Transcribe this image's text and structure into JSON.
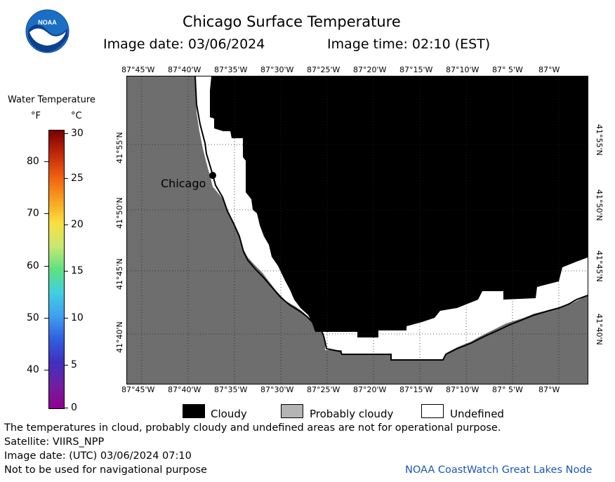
{
  "header": {
    "title": "Chicago Surface Temperature",
    "image_date": "Image date: 03/06/2024",
    "image_time": "Image time: 02:10 (EST)",
    "logo_text": "NOAA"
  },
  "scale": {
    "title": "Water Temperature",
    "unit_f": "°F",
    "unit_c": "°C",
    "f_ticks": [
      "80",
      "70",
      "60",
      "50",
      "40"
    ],
    "c_ticks": [
      "30",
      "25",
      "20",
      "15",
      "10",
      "5",
      "0"
    ],
    "colors": [
      "#7a0000",
      "#c0280a",
      "#f06010",
      "#f8a020",
      "#f8e040",
      "#c8e870",
      "#60e080",
      "#40d0e0",
      "#40a0f0",
      "#3060e0",
      "#4030c0",
      "#7020a0",
      "#900090"
    ]
  },
  "map": {
    "lon_labels": [
      "87°45'W",
      "87°40'W",
      "87°35'W",
      "87°30'W",
      "87°25'W",
      "87°20'W",
      "87°15'W",
      "87°10'W",
      "87° 5'W",
      "87°W"
    ],
    "lat_labels": [
      "41°55'N",
      "41°50'N",
      "41°45'N",
      "41°40'N"
    ],
    "city_label": "Chicago",
    "colors": {
      "land": "#6e6e6e",
      "cloudy": "#000000",
      "undefined": "#ffffff",
      "probably_cloudy": "#b4b4b4"
    }
  },
  "legend": {
    "cloudy": "Cloudy",
    "probably_cloudy": "Probably cloudy",
    "undefined": "Undefined"
  },
  "notes": {
    "line1": "The temperatures in cloud, probably cloudy and undefined areas are not for operational purpose.",
    "satellite": "Satellite: VIIRS_NPP",
    "image_date_utc": "Image date: (UTC) 03/06/2024   07:10",
    "nav_warning": "Not to be used for navigational purpose",
    "credit": "NOAA CoastWatch Great Lakes Node"
  }
}
